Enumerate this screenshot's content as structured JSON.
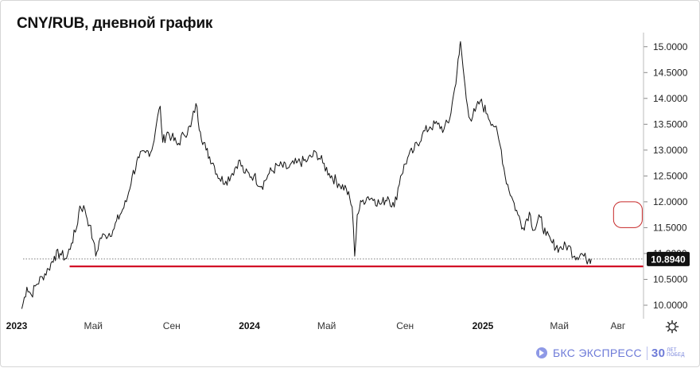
{
  "title": "CNY/RUB, дневной график",
  "colors": {
    "price": "#111111",
    "support": "#d0021b",
    "highlight": "#c62828",
    "last_label_bg": "#111111",
    "brand": "#6e7bd8"
  },
  "brand": {
    "name": "БКС ЭКСПРЕСС",
    "anniversary_number": "30",
    "anniversary_line1": "ЛЕТ",
    "anniversary_line2": "ПОБЕД"
  },
  "icons": {
    "settings": "gear-icon",
    "brand_logo": "bks-logo-icon"
  },
  "chart_data": {
    "type": "line",
    "title": "CNY/RUB, дневной график",
    "xlabel": "",
    "ylabel": "",
    "x_ticks": [
      {
        "label": "2023",
        "date": "2023-01-01",
        "bold": true
      },
      {
        "label": "Май",
        "date": "2023-05-01",
        "bold": false
      },
      {
        "label": "Сен",
        "date": "2023-09-01",
        "bold": false
      },
      {
        "label": "2024",
        "date": "2024-01-01",
        "bold": true
      },
      {
        "label": "Май",
        "date": "2024-05-01",
        "bold": false
      },
      {
        "label": "Сен",
        "date": "2024-09-01",
        "bold": false
      },
      {
        "label": "2025",
        "date": "2025-01-01",
        "bold": true
      },
      {
        "label": "Май",
        "date": "2025-05-01",
        "bold": false
      },
      {
        "label": "Авг",
        "date": "2025-08-01",
        "bold": false
      }
    ],
    "y_ticks": [
      "10.0000",
      "10.5000",
      "11.0000",
      "11.5000",
      "12.0000",
      "12.5000",
      "13.0000",
      "13.5000",
      "14.0000",
      "14.5000",
      "15.0000"
    ],
    "ylim": [
      9.8,
      15.15
    ],
    "xlim": [
      "2023-01-01",
      "2025-09-10"
    ],
    "last_value": "10.8940",
    "last_value_num": 10.894,
    "support_level": 10.75,
    "highlight_zone": {
      "x_from": "2025-07-25",
      "x_to": "2025-09-08",
      "y_from": 11.5,
      "y_to": 12.0
    },
    "series": [
      {
        "points": [
          [
            "2023-01-09",
            9.93
          ],
          [
            "2023-01-17",
            10.35
          ],
          [
            "2023-01-24",
            10.2
          ],
          [
            "2023-02-01",
            10.4
          ],
          [
            "2023-02-10",
            10.55
          ],
          [
            "2023-02-20",
            10.7
          ],
          [
            "2023-03-01",
            10.95
          ],
          [
            "2023-03-10",
            11.0
          ],
          [
            "2023-03-20",
            10.9
          ],
          [
            "2023-03-28",
            11.2
          ],
          [
            "2023-04-05",
            11.5
          ],
          [
            "2023-04-10",
            11.92
          ],
          [
            "2023-04-18",
            11.85
          ],
          [
            "2023-04-25",
            11.55
          ],
          [
            "2023-05-01",
            11.25
          ],
          [
            "2023-05-05",
            10.95
          ],
          [
            "2023-05-12",
            11.3
          ],
          [
            "2023-05-20",
            11.35
          ],
          [
            "2023-06-01",
            11.45
          ],
          [
            "2023-06-12",
            11.75
          ],
          [
            "2023-06-22",
            12.0
          ],
          [
            "2023-07-01",
            12.5
          ],
          [
            "2023-07-12",
            12.85
          ],
          [
            "2023-07-22",
            12.95
          ],
          [
            "2023-08-01",
            13.0
          ],
          [
            "2023-08-08",
            13.5
          ],
          [
            "2023-08-14",
            13.85
          ],
          [
            "2023-08-18",
            13.15
          ],
          [
            "2023-08-25",
            13.35
          ],
          [
            "2023-09-01",
            13.25
          ],
          [
            "2023-09-10",
            13.1
          ],
          [
            "2023-09-20",
            13.3
          ],
          [
            "2023-10-01",
            13.45
          ],
          [
            "2023-10-09",
            13.9
          ],
          [
            "2023-10-16",
            13.35
          ],
          [
            "2023-10-25",
            13.0
          ],
          [
            "2023-11-05",
            12.75
          ],
          [
            "2023-11-15",
            12.45
          ],
          [
            "2023-11-25",
            12.4
          ],
          [
            "2023-12-05",
            12.55
          ],
          [
            "2023-12-15",
            12.8
          ],
          [
            "2023-12-25",
            12.55
          ],
          [
            "2024-01-08",
            12.5
          ],
          [
            "2024-01-20",
            12.3
          ],
          [
            "2024-02-01",
            12.55
          ],
          [
            "2024-02-15",
            12.7
          ],
          [
            "2024-03-01",
            12.65
          ],
          [
            "2024-03-15",
            12.75
          ],
          [
            "2024-04-01",
            12.8
          ],
          [
            "2024-04-15",
            12.95
          ],
          [
            "2024-04-25",
            12.75
          ],
          [
            "2024-05-05",
            12.55
          ],
          [
            "2024-05-20",
            12.35
          ],
          [
            "2024-06-01",
            12.25
          ],
          [
            "2024-06-10",
            11.9
          ],
          [
            "2024-06-14",
            10.95
          ],
          [
            "2024-06-18",
            11.75
          ],
          [
            "2024-06-25",
            12.0
          ],
          [
            "2024-07-05",
            12.1
          ],
          [
            "2024-07-15",
            12.05
          ],
          [
            "2024-07-25",
            11.95
          ],
          [
            "2024-08-05",
            12.1
          ],
          [
            "2024-08-15",
            11.9
          ],
          [
            "2024-08-25",
            12.5
          ],
          [
            "2024-09-05",
            12.85
          ],
          [
            "2024-09-15",
            13.0
          ],
          [
            "2024-09-28",
            13.3
          ],
          [
            "2024-10-10",
            13.45
          ],
          [
            "2024-10-22",
            13.5
          ],
          [
            "2024-11-01",
            13.4
          ],
          [
            "2024-11-10",
            13.6
          ],
          [
            "2024-11-18",
            14.2
          ],
          [
            "2024-11-25",
            14.85
          ],
          [
            "2024-11-27",
            15.1
          ],
          [
            "2024-12-01",
            14.6
          ],
          [
            "2024-12-06",
            14.0
          ],
          [
            "2024-12-12",
            13.6
          ],
          [
            "2024-12-20",
            13.75
          ],
          [
            "2024-12-28",
            13.95
          ],
          [
            "2025-01-08",
            13.7
          ],
          [
            "2025-01-20",
            13.45
          ],
          [
            "2025-01-30",
            13.0
          ],
          [
            "2025-02-05",
            12.5
          ],
          [
            "2025-02-15",
            12.1
          ],
          [
            "2025-02-25",
            11.75
          ],
          [
            "2025-03-05",
            11.5
          ],
          [
            "2025-03-15",
            11.8
          ],
          [
            "2025-03-22",
            11.45
          ],
          [
            "2025-04-01",
            11.7
          ],
          [
            "2025-04-10",
            11.35
          ],
          [
            "2025-04-20",
            11.2
          ],
          [
            "2025-05-01",
            11.1
          ],
          [
            "2025-05-15",
            11.15
          ],
          [
            "2025-05-25",
            10.95
          ],
          [
            "2025-06-05",
            11.0
          ],
          [
            "2025-06-12",
            10.88
          ],
          [
            "2025-06-17",
            10.9
          ],
          [
            "2025-06-20",
            10.894
          ]
        ]
      }
    ],
    "grid": false,
    "legend": "none"
  }
}
